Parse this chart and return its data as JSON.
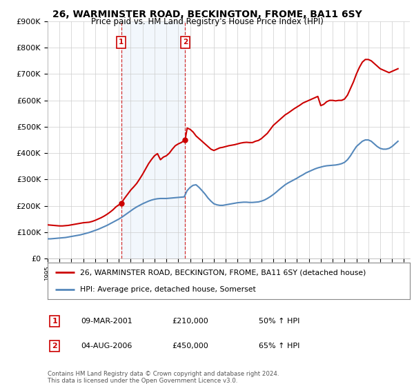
{
  "title": "26, WARMINSTER ROAD, BECKINGTON, FROME, BA11 6SY",
  "subtitle": "Price paid vs. HM Land Registry's House Price Index (HPI)",
  "ylabel_ticks": [
    "£0",
    "£100K",
    "£200K",
    "£300K",
    "£400K",
    "£500K",
    "£600K",
    "£700K",
    "£800K",
    "£900K"
  ],
  "ytick_values": [
    0,
    100000,
    200000,
    300000,
    400000,
    500000,
    600000,
    700000,
    800000,
    900000
  ],
  "ylim": [
    0,
    900000
  ],
  "xlim_start": 1995.0,
  "xlim_end": 2025.5,
  "legend_label_red": "26, WARMINSTER ROAD, BECKINGTON, FROME, BA11 6SY (detached house)",
  "legend_label_blue": "HPI: Average price, detached house, Somerset",
  "sale1_label": "1",
  "sale1_date": "09-MAR-2001",
  "sale1_price": "£210,000",
  "sale1_hpi": "50% ↑ HPI",
  "sale1_year": 2001.19,
  "sale1_price_val": 210000,
  "sale2_label": "2",
  "sale2_date": "04-AUG-2006",
  "sale2_price": "£450,000",
  "sale2_hpi": "65% ↑ HPI",
  "sale2_year": 2006.58,
  "sale2_price_val": 450000,
  "red_color": "#cc0000",
  "blue_color": "#5588bb",
  "vline_color": "#cc0000",
  "footnote": "Contains HM Land Registry data © Crown copyright and database right 2024.\nThis data is licensed under the Open Government Licence v3.0.",
  "red_x": [
    1995.0,
    1995.25,
    1995.5,
    1995.75,
    1996.0,
    1996.25,
    1996.5,
    1996.75,
    1997.0,
    1997.25,
    1997.5,
    1997.75,
    1998.0,
    1998.25,
    1998.5,
    1998.75,
    1999.0,
    1999.25,
    1999.5,
    1999.75,
    2000.0,
    2000.25,
    2000.5,
    2000.75,
    2001.0,
    2001.19,
    2001.5,
    2001.75,
    2002.0,
    2002.25,
    2002.5,
    2002.75,
    2003.0,
    2003.25,
    2003.5,
    2003.75,
    2004.0,
    2004.25,
    2004.5,
    2004.75,
    2005.0,
    2005.25,
    2005.5,
    2005.75,
    2006.0,
    2006.25,
    2006.58,
    2006.75,
    2007.0,
    2007.25,
    2007.5,
    2007.75,
    2008.0,
    2008.25,
    2008.5,
    2008.75,
    2009.0,
    2009.25,
    2009.5,
    2009.75,
    2010.0,
    2010.25,
    2010.5,
    2010.75,
    2011.0,
    2011.25,
    2011.5,
    2011.75,
    2012.0,
    2012.25,
    2012.5,
    2012.75,
    2013.0,
    2013.25,
    2013.5,
    2013.75,
    2014.0,
    2014.25,
    2014.5,
    2014.75,
    2015.0,
    2015.25,
    2015.5,
    2015.75,
    2016.0,
    2016.25,
    2016.5,
    2016.75,
    2017.0,
    2017.25,
    2017.5,
    2017.75,
    2018.0,
    2018.25,
    2018.5,
    2018.75,
    2019.0,
    2019.25,
    2019.5,
    2019.75,
    2020.0,
    2020.25,
    2020.5,
    2020.75,
    2021.0,
    2021.25,
    2021.5,
    2021.75,
    2022.0,
    2022.25,
    2022.5,
    2022.75,
    2023.0,
    2023.25,
    2023.5,
    2023.75,
    2024.0,
    2024.25,
    2024.5
  ],
  "red_y": [
    128000,
    127000,
    126000,
    125000,
    124000,
    124000,
    125000,
    126000,
    128000,
    130000,
    132000,
    134000,
    136000,
    137000,
    138000,
    141000,
    145000,
    150000,
    155000,
    161000,
    168000,
    176000,
    185000,
    196000,
    204000,
    210000,
    230000,
    245000,
    260000,
    272000,
    285000,
    302000,
    320000,
    340000,
    360000,
    376000,
    390000,
    398000,
    375000,
    385000,
    390000,
    400000,
    415000,
    428000,
    435000,
    440000,
    450000,
    495000,
    490000,
    480000,
    465000,
    455000,
    445000,
    435000,
    425000,
    415000,
    410000,
    415000,
    420000,
    422000,
    425000,
    428000,
    430000,
    432000,
    435000,
    438000,
    440000,
    441000,
    440000,
    440000,
    445000,
    448000,
    455000,
    465000,
    475000,
    490000,
    505000,
    515000,
    525000,
    535000,
    545000,
    552000,
    560000,
    568000,
    575000,
    582000,
    590000,
    595000,
    600000,
    605000,
    610000,
    615000,
    580000,
    585000,
    595000,
    600000,
    600000,
    598000,
    600000,
    600000,
    605000,
    620000,
    645000,
    670000,
    700000,
    725000,
    745000,
    755000,
    755000,
    750000,
    740000,
    730000,
    720000,
    715000,
    710000,
    705000,
    710000,
    715000,
    720000
  ],
  "blue_x": [
    1995.0,
    1995.25,
    1995.5,
    1995.75,
    1996.0,
    1996.25,
    1996.5,
    1996.75,
    1997.0,
    1997.25,
    1997.5,
    1997.75,
    1998.0,
    1998.25,
    1998.5,
    1998.75,
    1999.0,
    1999.25,
    1999.5,
    1999.75,
    2000.0,
    2000.25,
    2000.5,
    2000.75,
    2001.0,
    2001.25,
    2001.5,
    2001.75,
    2002.0,
    2002.25,
    2002.5,
    2002.75,
    2003.0,
    2003.25,
    2003.5,
    2003.75,
    2004.0,
    2004.25,
    2004.5,
    2004.75,
    2005.0,
    2005.25,
    2005.5,
    2005.75,
    2006.0,
    2006.25,
    2006.5,
    2006.75,
    2007.0,
    2007.25,
    2007.5,
    2007.75,
    2008.0,
    2008.25,
    2008.5,
    2008.75,
    2009.0,
    2009.25,
    2009.5,
    2009.75,
    2010.0,
    2010.25,
    2010.5,
    2010.75,
    2011.0,
    2011.25,
    2011.5,
    2011.75,
    2012.0,
    2012.25,
    2012.5,
    2012.75,
    2013.0,
    2013.25,
    2013.5,
    2013.75,
    2014.0,
    2014.25,
    2014.5,
    2014.75,
    2015.0,
    2015.25,
    2015.5,
    2015.75,
    2016.0,
    2016.25,
    2016.5,
    2016.75,
    2017.0,
    2017.25,
    2017.5,
    2017.75,
    2018.0,
    2018.25,
    2018.5,
    2018.75,
    2019.0,
    2019.25,
    2019.5,
    2019.75,
    2020.0,
    2020.25,
    2020.5,
    2020.75,
    2021.0,
    2021.25,
    2021.5,
    2021.75,
    2022.0,
    2022.25,
    2022.5,
    2022.75,
    2023.0,
    2023.25,
    2023.5,
    2023.75,
    2024.0,
    2024.25,
    2024.5
  ],
  "blue_y": [
    75000,
    75000,
    76000,
    77000,
    78000,
    79000,
    80000,
    82000,
    84000,
    86000,
    88000,
    90000,
    93000,
    96000,
    99000,
    103000,
    107000,
    111000,
    116000,
    121000,
    126000,
    132000,
    138000,
    144000,
    150000,
    157000,
    165000,
    173000,
    181000,
    189000,
    196000,
    202000,
    208000,
    213000,
    218000,
    222000,
    225000,
    227000,
    228000,
    228000,
    228000,
    229000,
    230000,
    231000,
    232000,
    233000,
    234000,
    258000,
    270000,
    278000,
    280000,
    270000,
    258000,
    245000,
    230000,
    218000,
    208000,
    204000,
    202000,
    202000,
    204000,
    206000,
    208000,
    210000,
    212000,
    213000,
    214000,
    214000,
    213000,
    213000,
    214000,
    215000,
    218000,
    222000,
    228000,
    235000,
    243000,
    252000,
    262000,
    271000,
    280000,
    287000,
    293000,
    299000,
    305000,
    312000,
    318000,
    325000,
    330000,
    335000,
    340000,
    344000,
    347000,
    350000,
    352000,
    353000,
    354000,
    355000,
    357000,
    360000,
    365000,
    375000,
    390000,
    408000,
    425000,
    435000,
    445000,
    450000,
    450000,
    445000,
    435000,
    425000,
    418000,
    415000,
    415000,
    418000,
    425000,
    435000,
    445000
  ],
  "shaded_x1": 2001.19,
  "shaded_x2": 2006.58,
  "bg_color": "#ffffff",
  "plot_bg_color": "#ffffff",
  "grid_color": "#cccccc"
}
